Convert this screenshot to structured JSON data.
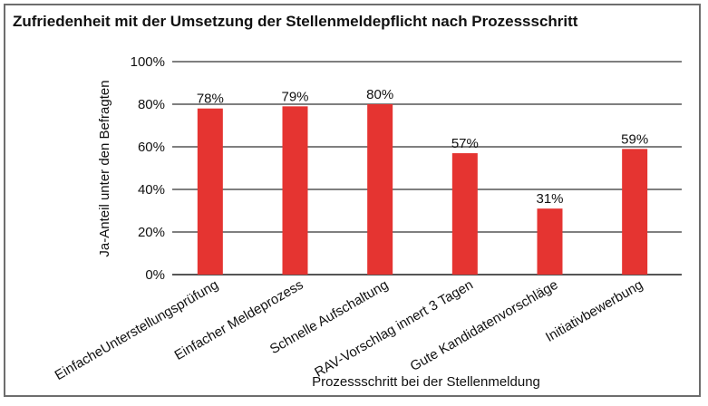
{
  "chart_data": {
    "type": "bar",
    "title": "Zufriedenheit mit der Umsetzung der Stellenmeldepflicht nach Prozessschritt",
    "xlabel": "Prozessschritt bei der Stellenmeldung",
    "ylabel": "Ja-Anteil unter den Befragten",
    "categories": [
      "EinfacheUnterstellungsprüfung",
      "Einfacher Meldeprozess",
      "Schnelle Aufschaltung",
      "RAV-Vorschlag innert 3 Tagen",
      "Gute Kandidatenvorschläge",
      "Initiativbewerbung"
    ],
    "values": [
      78,
      79,
      80,
      57,
      31,
      59
    ],
    "data_labels": [
      "78%",
      "79%",
      "80%",
      "57%",
      "31%",
      "59%"
    ],
    "yticks": [
      "0%",
      "20%",
      "40%",
      "60%",
      "80%",
      "100%"
    ],
    "ylim": [
      0,
      100
    ],
    "grid": true,
    "legend": "none",
    "bar_color": "#e53431"
  }
}
